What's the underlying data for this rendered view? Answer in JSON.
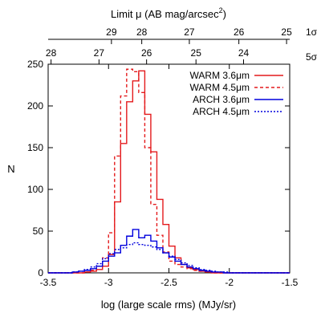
{
  "chart_data": {
    "type": "histogram",
    "xlabel": "log (large scale rms) (MJy/sr)",
    "ylabel": "N",
    "top_axis_label": "Limit μ (AB mag/arcsec",
    "top_axis_label_sup": "2",
    "top_axis_label_close": ")",
    "xlim": [
      -3.5,
      -1.5
    ],
    "ylim": [
      0,
      250
    ],
    "x_ticks": [
      -3.5,
      -3,
      -2.5,
      -2,
      -1.5
    ],
    "x_tick_labels": [
      "-3.5",
      "-3",
      "-2.5",
      "-2",
      "-1.5"
    ],
    "y_ticks": [
      0,
      50,
      100,
      150,
      200,
      250
    ],
    "y_tick_labels": [
      "0",
      "50",
      "100",
      "150",
      "200",
      "250"
    ],
    "top_axis_1sigma": {
      "label": "1σ",
      "ticks": [
        {
          "label": "29",
          "x": -2.976
        },
        {
          "label": "28",
          "x": -2.725
        },
        {
          "label": "27",
          "x": -2.331
        },
        {
          "label": "26",
          "x": -1.921
        },
        {
          "label": "25",
          "x": -1.526
        }
      ]
    },
    "top_axis_5sigma": {
      "label": "5σ",
      "ticks": [
        {
          "label": "28",
          "x": -3.476
        },
        {
          "label": "27",
          "x": -3.079
        },
        {
          "label": "26",
          "x": -2.685
        },
        {
          "label": "25",
          "x": -2.276
        },
        {
          "label": "24",
          "x": -1.882
        }
      ]
    },
    "legend_position": "top-right",
    "bin_edges": [
      -3.5,
      -3.45,
      -3.4,
      -3.35,
      -3.3,
      -3.25,
      -3.2,
      -3.15,
      -3.1,
      -3.05,
      -3.0,
      -2.95,
      -2.9,
      -2.85,
      -2.8,
      -2.75,
      -2.7,
      -2.65,
      -2.6,
      -2.55,
      -2.5,
      -2.45,
      -2.4,
      -2.35,
      -2.3,
      -2.25,
      -2.2,
      -2.15,
      -2.1,
      -2.05,
      -2.0,
      -1.95,
      -1.9,
      -1.85,
      -1.8,
      -1.75,
      -1.7,
      -1.65,
      -1.6,
      -1.55,
      -1.5
    ],
    "series": [
      {
        "name": "WARM 3.6μm",
        "color": "#e41a1c",
        "dash": "solid",
        "values": [
          0,
          0,
          0,
          0,
          0,
          0,
          1,
          2,
          4,
          8,
          22,
          85,
          155,
          205,
          230,
          242,
          190,
          145,
          88,
          58,
          32,
          18,
          10,
          6,
          4,
          2,
          1,
          0,
          0,
          0,
          0,
          0,
          0,
          0,
          0,
          0,
          0,
          0,
          0,
          0
        ]
      },
      {
        "name": "WARM 4.5μm",
        "color": "#e41a1c",
        "dash": "dashed",
        "values": [
          0,
          0,
          0,
          0,
          0,
          0,
          1,
          3,
          8,
          18,
          48,
          140,
          212,
          244,
          241,
          216,
          150,
          82,
          45,
          25,
          14,
          10,
          7,
          5,
          3,
          2,
          1,
          0,
          0,
          0,
          0,
          0,
          0,
          0,
          0,
          0,
          0,
          0,
          0,
          0
        ]
      },
      {
        "name": "ARCH 3.6μm",
        "color": "#0000dd",
        "dash": "solid",
        "values": [
          0,
          0,
          0,
          0,
          1,
          2,
          3,
          5,
          8,
          14,
          20,
          24,
          33,
          44,
          52,
          42,
          45,
          38,
          30,
          24,
          19,
          14,
          10,
          7,
          5,
          3,
          2,
          1,
          1,
          0,
          0,
          0,
          0,
          0,
          0,
          0,
          0,
          0,
          0,
          0
        ]
      },
      {
        "name": "ARCH 4.5μm",
        "color": "#0000dd",
        "dash": "dotted",
        "values": [
          0,
          0,
          0,
          0,
          1,
          2,
          4,
          7,
          11,
          17,
          23,
          28,
          30,
          34,
          36,
          34,
          33,
          31,
          28,
          24,
          20,
          16,
          12,
          9,
          6,
          4,
          3,
          2,
          1,
          1,
          0,
          0,
          0,
          0,
          0,
          0,
          0,
          0,
          0,
          0
        ]
      }
    ]
  }
}
